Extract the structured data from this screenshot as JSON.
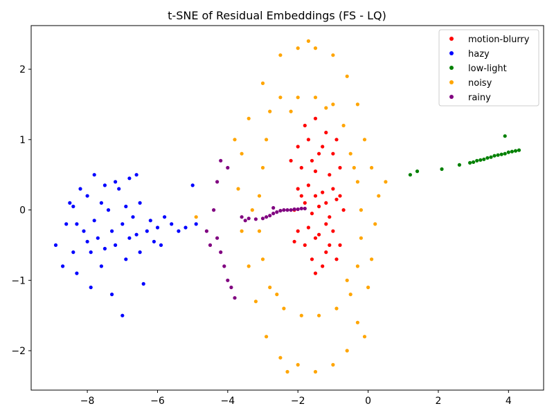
{
  "chart_data": {
    "type": "scatter",
    "title": "t-SNE of Residual Embeddings (FS - LQ)",
    "xlabel": "",
    "ylabel": "",
    "xlim": [
      -9.6,
      5.0
    ],
    "ylim": [
      -2.56,
      2.62
    ],
    "xticks": [
      -8,
      -6,
      -4,
      -2,
      0,
      2,
      4
    ],
    "yticks": [
      -2,
      -1,
      0,
      1,
      2
    ],
    "grid": false,
    "legend_position": "top-right",
    "series": [
      {
        "name": "motion-blurry",
        "color": "#ff0000",
        "points": [
          [
            -2.0,
            0.9
          ],
          [
            -1.8,
            1.2
          ],
          [
            -1.5,
            1.3
          ],
          [
            -1.2,
            1.1
          ],
          [
            -1.0,
            0.8
          ],
          [
            -0.8,
            0.6
          ],
          [
            -1.9,
            0.6
          ],
          [
            -1.4,
            0.8
          ],
          [
            -1.1,
            0.5
          ],
          [
            -1.7,
            1.0
          ],
          [
            -2.2,
            0.7
          ],
          [
            -1.6,
            0.7
          ],
          [
            -1.3,
            0.9
          ],
          [
            -0.9,
            1.0
          ],
          [
            -1.5,
            0.55
          ],
          [
            -2.0,
            0.3
          ],
          [
            -1.8,
            0.1
          ],
          [
            -1.5,
            0.2
          ],
          [
            -1.2,
            0.1
          ],
          [
            -0.9,
            0.15
          ],
          [
            -0.7,
            0.0
          ],
          [
            -1.6,
            -0.05
          ],
          [
            -1.3,
            0.25
          ],
          [
            -1.0,
            0.3
          ],
          [
            -2.1,
            0.0
          ],
          [
            -1.4,
            0.05
          ],
          [
            -1.1,
            -0.1
          ],
          [
            -1.7,
            0.35
          ],
          [
            -0.8,
            0.2
          ],
          [
            -1.9,
            0.2
          ],
          [
            -2.0,
            -0.3
          ],
          [
            -1.8,
            -0.5
          ],
          [
            -1.5,
            -0.4
          ],
          [
            -1.2,
            -0.6
          ],
          [
            -1.0,
            -0.3
          ],
          [
            -0.8,
            -0.5
          ],
          [
            -1.6,
            -0.7
          ],
          [
            -1.3,
            -0.8
          ],
          [
            -1.1,
            -0.5
          ],
          [
            -1.7,
            -0.25
          ],
          [
            -1.4,
            -0.35
          ],
          [
            -0.9,
            -0.7
          ],
          [
            -1.5,
            -0.9
          ],
          [
            -2.1,
            -0.45
          ],
          [
            -1.2,
            -0.2
          ]
        ]
      },
      {
        "name": "hazy",
        "color": "#0000ff",
        "points": [
          [
            -8.9,
            -0.5
          ],
          [
            -8.6,
            -0.2
          ],
          [
            -8.5,
            0.1
          ],
          [
            -8.4,
            -0.6
          ],
          [
            -8.3,
            -0.9
          ],
          [
            -8.2,
            0.3
          ],
          [
            -8.1,
            -0.3
          ],
          [
            -8.0,
            0.2
          ],
          [
            -7.9,
            -1.1
          ],
          [
            -7.8,
            0.5
          ],
          [
            -7.7,
            -0.4
          ],
          [
            -7.6,
            -0.8
          ],
          [
            -7.5,
            0.35
          ],
          [
            -7.4,
            0.0
          ],
          [
            -7.3,
            -1.2
          ],
          [
            -7.2,
            -0.5
          ],
          [
            -7.1,
            0.3
          ],
          [
            -7.0,
            -0.2
          ],
          [
            -6.9,
            -0.7
          ],
          [
            -6.8,
            0.45
          ],
          [
            -6.7,
            -0.1
          ],
          [
            -6.6,
            -0.35
          ],
          [
            -6.5,
            0.1
          ],
          [
            -6.4,
            -1.05
          ],
          [
            -6.3,
            -0.3
          ],
          [
            -6.2,
            -0.15
          ],
          [
            -6.0,
            -0.25
          ],
          [
            -5.9,
            -0.5
          ],
          [
            -5.8,
            -0.1
          ],
          [
            -5.6,
            -0.2
          ],
          [
            -5.4,
            -0.3
          ],
          [
            -5.2,
            -0.25
          ],
          [
            -8.3,
            -0.2
          ],
          [
            -7.9,
            -0.6
          ],
          [
            -7.6,
            0.1
          ],
          [
            -7.3,
            -0.3
          ],
          [
            -7.0,
            -1.5
          ],
          [
            -6.8,
            -0.4
          ],
          [
            -6.5,
            -0.6
          ],
          [
            -8.7,
            -0.8
          ],
          [
            -8.0,
            -0.45
          ],
          [
            -7.2,
            0.4
          ],
          [
            -6.6,
            0.5
          ],
          [
            -6.1,
            -0.45
          ],
          [
            -5.0,
            0.35
          ],
          [
            -4.9,
            -0.2
          ],
          [
            -8.4,
            0.05
          ],
          [
            -7.8,
            -0.15
          ],
          [
            -7.5,
            -0.55
          ],
          [
            -6.9,
            0.05
          ]
        ]
      },
      {
        "name": "low-light",
        "color": "#008000",
        "points": [
          [
            1.2,
            0.5
          ],
          [
            1.4,
            0.55
          ],
          [
            2.1,
            0.58
          ],
          [
            2.6,
            0.64
          ],
          [
            2.9,
            0.67
          ],
          [
            3.0,
            0.68
          ],
          [
            3.1,
            0.7
          ],
          [
            3.2,
            0.71
          ],
          [
            3.3,
            0.72
          ],
          [
            3.4,
            0.74
          ],
          [
            3.5,
            0.75
          ],
          [
            3.6,
            0.77
          ],
          [
            3.7,
            0.78
          ],
          [
            3.8,
            0.79
          ],
          [
            3.9,
            0.8
          ],
          [
            4.0,
            0.82
          ],
          [
            4.1,
            0.83
          ],
          [
            4.2,
            0.84
          ],
          [
            4.3,
            0.85
          ],
          [
            3.9,
            1.05
          ]
        ]
      },
      {
        "name": "noisy",
        "color": "#ffa500",
        "points": [
          [
            -3.0,
            1.8
          ],
          [
            -2.5,
            2.2
          ],
          [
            -2.0,
            2.3
          ],
          [
            -1.5,
            2.3
          ],
          [
            -1.0,
            2.2
          ],
          [
            -0.6,
            1.9
          ],
          [
            -0.3,
            1.5
          ],
          [
            -0.1,
            1.0
          ],
          [
            0.1,
            0.6
          ],
          [
            0.3,
            0.2
          ],
          [
            0.2,
            -0.2
          ],
          [
            0.1,
            -0.7
          ],
          [
            0.0,
            -1.1
          ],
          [
            -0.3,
            -1.6
          ],
          [
            -0.6,
            -2.0
          ],
          [
            -1.0,
            -2.2
          ],
          [
            -1.5,
            -2.3
          ],
          [
            -2.0,
            -2.2
          ],
          [
            -2.5,
            -2.1
          ],
          [
            -2.9,
            -1.8
          ],
          [
            -3.2,
            -1.3
          ],
          [
            -3.4,
            -0.8
          ],
          [
            -3.6,
            -0.3
          ],
          [
            -3.7,
            0.3
          ],
          [
            -3.6,
            0.8
          ],
          [
            -3.4,
            1.3
          ],
          [
            -2.8,
            1.4
          ],
          [
            -2.5,
            1.6
          ],
          [
            -2.0,
            1.6
          ],
          [
            -1.5,
            1.6
          ],
          [
            -1.0,
            1.5
          ],
          [
            -0.7,
            1.2
          ],
          [
            -0.5,
            0.8
          ],
          [
            -0.3,
            0.4
          ],
          [
            -0.2,
            0.0
          ],
          [
            -0.2,
            -0.4
          ],
          [
            -0.3,
            -0.8
          ],
          [
            -0.5,
            -1.2
          ],
          [
            -0.9,
            -1.4
          ],
          [
            -1.4,
            -1.5
          ],
          [
            -1.9,
            -1.5
          ],
          [
            -2.4,
            -1.4
          ],
          [
            -2.8,
            -1.1
          ],
          [
            -3.0,
            -0.7
          ],
          [
            -3.1,
            -0.3
          ],
          [
            -3.1,
            0.2
          ],
          [
            -3.0,
            0.6
          ],
          [
            -2.9,
            1.0
          ],
          [
            -2.2,
            1.4
          ],
          [
            -1.2,
            1.45
          ],
          [
            -0.4,
            0.6
          ],
          [
            -0.6,
            -1.0
          ],
          [
            -2.6,
            -1.2
          ],
          [
            -3.3,
            0.0
          ],
          [
            -1.7,
            2.4
          ],
          [
            0.5,
            0.4
          ],
          [
            -0.1,
            -1.8
          ],
          [
            -2.3,
            -2.3
          ],
          [
            -3.8,
            1.0
          ],
          [
            -4.9,
            -0.1
          ]
        ]
      },
      {
        "name": "rainy",
        "color": "#800080",
        "points": [
          [
            -4.2,
            0.7
          ],
          [
            -4.3,
            0.4
          ],
          [
            -4.4,
            0.0
          ],
          [
            -4.3,
            -0.4
          ],
          [
            -4.1,
            -0.8
          ],
          [
            -3.9,
            -1.1
          ],
          [
            -3.8,
            -1.25
          ],
          [
            -4.0,
            0.6
          ],
          [
            -4.2,
            -0.6
          ],
          [
            -4.0,
            -1.0
          ],
          [
            -3.6,
            -0.1
          ],
          [
            -3.4,
            -0.12
          ],
          [
            -3.2,
            -0.13
          ],
          [
            -3.0,
            -0.12
          ],
          [
            -2.9,
            -0.1
          ],
          [
            -2.8,
            -0.08
          ],
          [
            -2.7,
            -0.05
          ],
          [
            -2.6,
            -0.03
          ],
          [
            -2.5,
            -0.01
          ],
          [
            -2.4,
            0.0
          ],
          [
            -2.3,
            0.0
          ],
          [
            -2.2,
            0.0
          ],
          [
            -2.1,
            0.01
          ],
          [
            -2.0,
            0.01
          ],
          [
            -1.9,
            0.02
          ],
          [
            -1.8,
            0.02
          ],
          [
            -2.7,
            0.03
          ],
          [
            -3.5,
            -0.15
          ],
          [
            -4.5,
            -0.5
          ],
          [
            -4.6,
            -0.3
          ]
        ]
      }
    ]
  }
}
